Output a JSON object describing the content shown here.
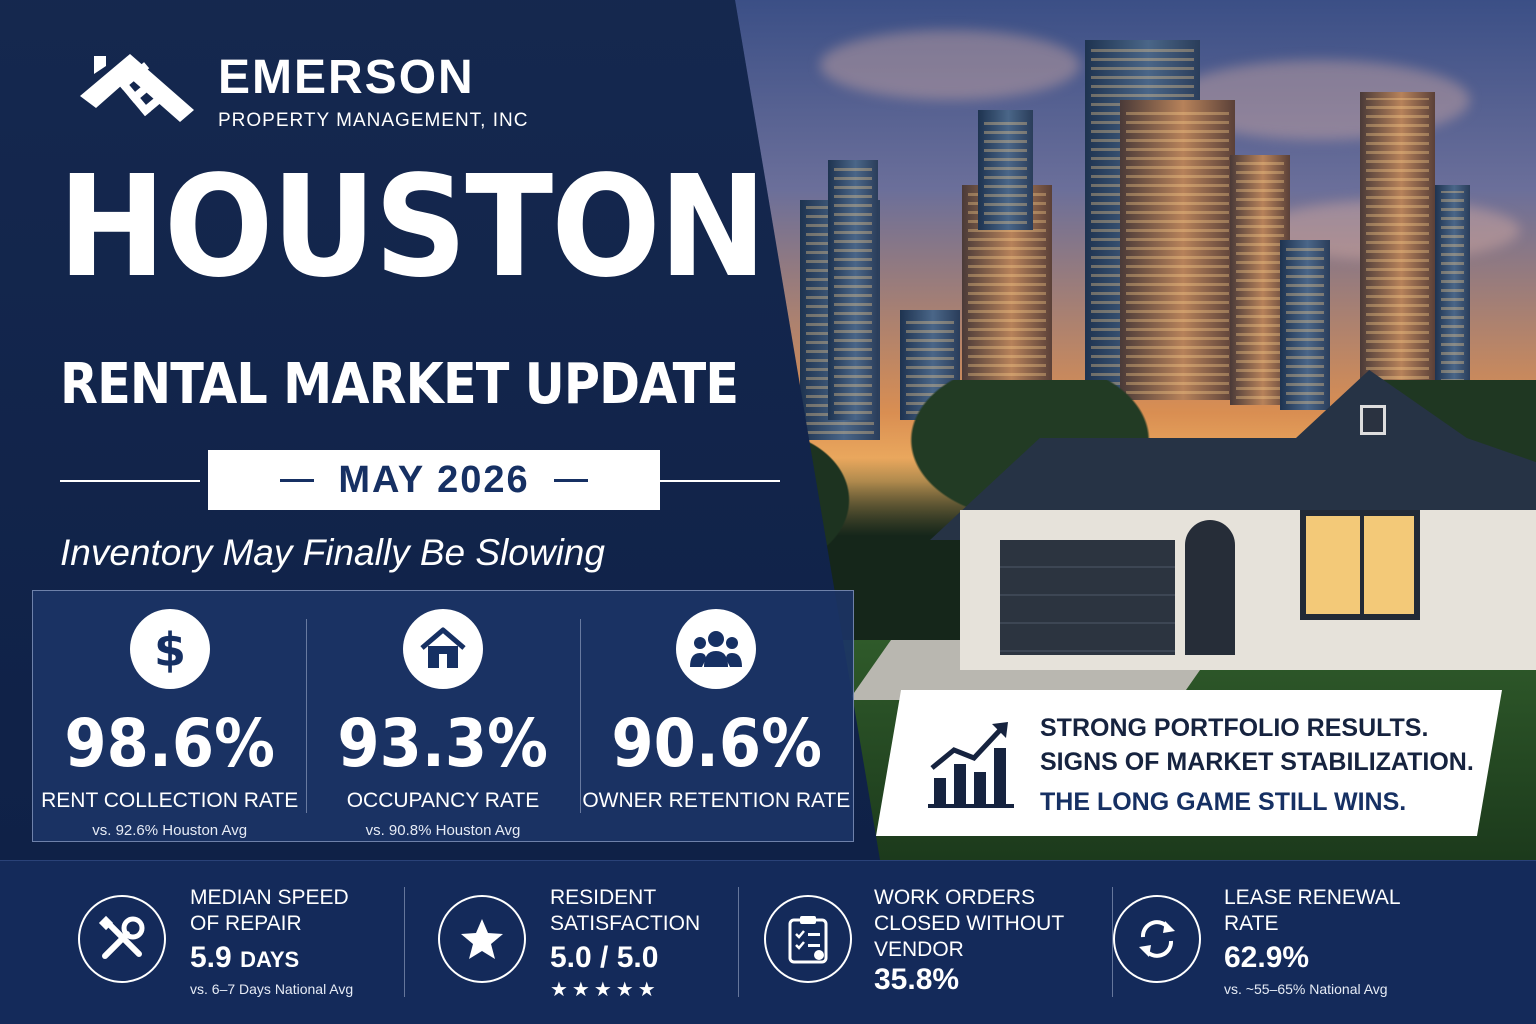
{
  "brand": {
    "name": "EMERSON",
    "sub": "PROPERTY MANAGEMENT, INC"
  },
  "headline": "HOUSTON",
  "subhead": "RENTAL MARKET UPDATE",
  "date": "MAY 2026",
  "tagline": "Inventory May Finally Be Slowing",
  "stats": [
    {
      "icon": "dollar-icon",
      "value": "98.6%",
      "label": "RENT COLLECTION RATE",
      "compare": "vs. 92.6% Houston Avg"
    },
    {
      "icon": "house-icon",
      "value": "93.3%",
      "label": "OCCUPANCY RATE",
      "compare": "vs. 90.8% Houston Avg"
    },
    {
      "icon": "people-icon",
      "value": "90.6%",
      "label": "OWNER RETENTION RATE",
      "compare": ""
    }
  ],
  "callout": {
    "line1": "STRONG PORTFOLIO RESULTS.",
    "line2": "SIGNS OF MARKET STABILIZATION.",
    "line3": "THE LONG GAME STILL WINS."
  },
  "metrics": [
    {
      "icon": "tools-icon",
      "label1": "MEDIAN SPEED",
      "label2": "OF REPAIR",
      "label3": "",
      "value": "5.9",
      "unit": "DAYS",
      "compare": "vs. 6–7 Days National Avg"
    },
    {
      "icon": "star-icon",
      "label1": "RESIDENT",
      "label2": "SATISFACTION",
      "label3": "",
      "value": "5.0 / 5.0",
      "unit": "",
      "stars": "★★★★★",
      "compare": ""
    },
    {
      "icon": "clipboard-icon",
      "label1": "WORK ORDERS",
      "label2": "CLOSED WITHOUT",
      "label3": "VENDOR",
      "value": "35.8%",
      "unit": "",
      "compare": ""
    },
    {
      "icon": "renew-icon",
      "label1": "LEASE RENEWAL",
      "label2": "RATE",
      "label3": "",
      "value": "62.9%",
      "unit": "",
      "compare": "vs. ~55–65% National Avg"
    }
  ],
  "colors": {
    "navy": "#0f2147",
    "panel": "#1c3466",
    "band": "#142a5a",
    "accent": "#163063"
  }
}
